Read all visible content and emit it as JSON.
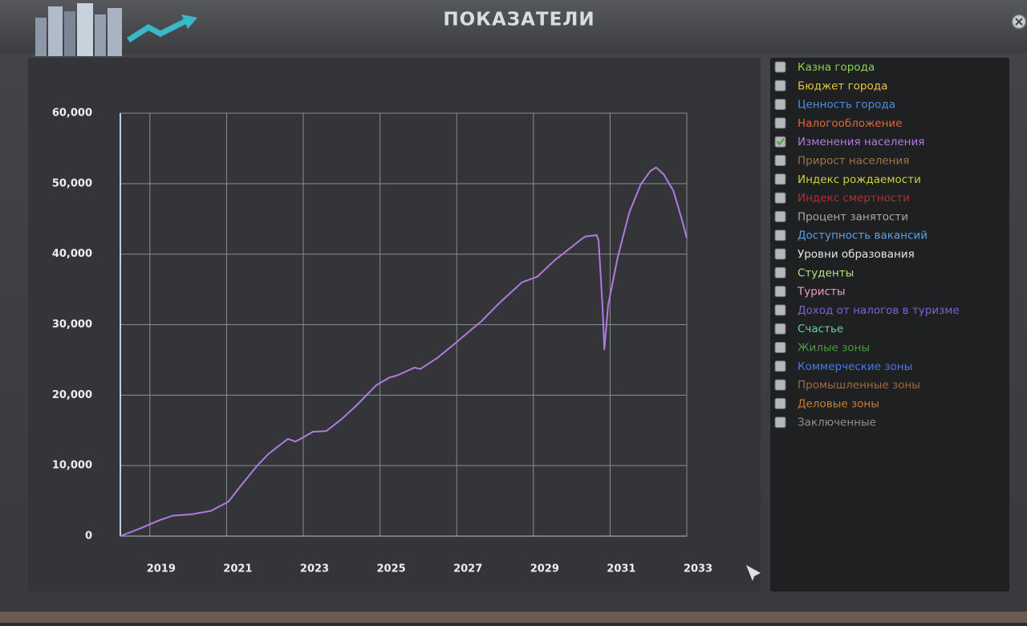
{
  "header": {
    "title": "ПОКАЗАТЕЛИ"
  },
  "legend": [
    {
      "label": "Казна города",
      "color": "#8fd14f",
      "checked": false
    },
    {
      "label": "Бюджет города",
      "color": "#e8c53a",
      "checked": false
    },
    {
      "label": "Ценность города",
      "color": "#4a8fe0",
      "checked": false
    },
    {
      "label": "Налогообложение",
      "color": "#e0683a",
      "checked": false
    },
    {
      "label": "Изменения населения",
      "color": "#b07ae0",
      "checked": true
    },
    {
      "label": "Прирост населения",
      "color": "#a07444",
      "checked": false
    },
    {
      "label": "Индекс рождаемости",
      "color": "#c8d040",
      "checked": false
    },
    {
      "label": "Индекс смертности",
      "color": "#b03030",
      "checked": false
    },
    {
      "label": "Процент занятости",
      "color": "#a8a8a8",
      "checked": false
    },
    {
      "label": "Доступность вакансий",
      "color": "#5aa0e8",
      "checked": false
    },
    {
      "label": "Уровни образования",
      "color": "#e4e4e4",
      "checked": false
    },
    {
      "label": "Студенты",
      "color": "#b8e07a",
      "checked": false
    },
    {
      "label": "Туристы",
      "color": "#e8a0c8",
      "checked": false
    },
    {
      "label": "Доход от налогов в туризме",
      "color": "#8060d0",
      "checked": false
    },
    {
      "label": "Счастье",
      "color": "#6ad0a0",
      "checked": false
    },
    {
      "label": "Жилые зоны",
      "color": "#4a9a40",
      "checked": false
    },
    {
      "label": "Коммерческие зоны",
      "color": "#4a7ae0",
      "checked": false
    },
    {
      "label": "Промышленные зоны",
      "color": "#a06a40",
      "checked": false
    },
    {
      "label": "Деловые зоны",
      "color": "#c88030",
      "checked": false
    },
    {
      "label": "Заключенные",
      "color": "#909090",
      "checked": false
    }
  ],
  "chart_data": {
    "type": "line",
    "grid": true,
    "x": [
      2018.23,
      2018.75,
      2019.27,
      2019.6,
      2020.1,
      2020.6,
      2021.05,
      2021.35,
      2021.8,
      2022.1,
      2022.6,
      2022.8,
      2023.25,
      2023.6,
      2024.0,
      2024.4,
      2024.9,
      2025.25,
      2025.45,
      2025.9,
      2026.05,
      2026.5,
      2026.95,
      2027.45,
      2027.65,
      2028.1,
      2028.7,
      2029.1,
      2029.55,
      2030.2,
      2030.35,
      2030.65,
      2030.7,
      2030.8,
      2030.85,
      2030.95,
      2031.2,
      2031.5,
      2031.8,
      2032.05,
      2032.2,
      2032.4,
      2032.65,
      2032.85,
      2033.0
    ],
    "series": [
      {
        "color": "#b07ae0",
        "values": [
          0,
          1100,
          2300,
          2900,
          3100,
          3600,
          4900,
          7000,
          10000,
          11700,
          13800,
          13400,
          14800,
          14900,
          16600,
          18600,
          21400,
          22500,
          22800,
          23900,
          23700,
          25300,
          27300,
          29600,
          30500,
          33000,
          36000,
          36800,
          39100,
          41900,
          42500,
          42700,
          41900,
          32800,
          26500,
          32800,
          39600,
          45900,
          49900,
          51800,
          52300,
          51300,
          49000,
          45300,
          42300
        ]
      }
    ],
    "xlim": [
      2018.23,
      2033
    ],
    "xticks": [
      2019,
      2021,
      2023,
      2025,
      2027,
      2029,
      2031,
      2033
    ],
    "ylim": [
      0,
      60000
    ],
    "yticks": [
      0,
      {
        "value": 10000,
        "label": "10,000"
      },
      {
        "value": 20000,
        "label": "20,000"
      },
      {
        "value": 30000,
        "label": "30,000"
      },
      {
        "value": 40000,
        "label": "40,000"
      },
      {
        "value": 50000,
        "label": "50,000"
      },
      {
        "value": 60000,
        "label": "60,000"
      }
    ]
  }
}
